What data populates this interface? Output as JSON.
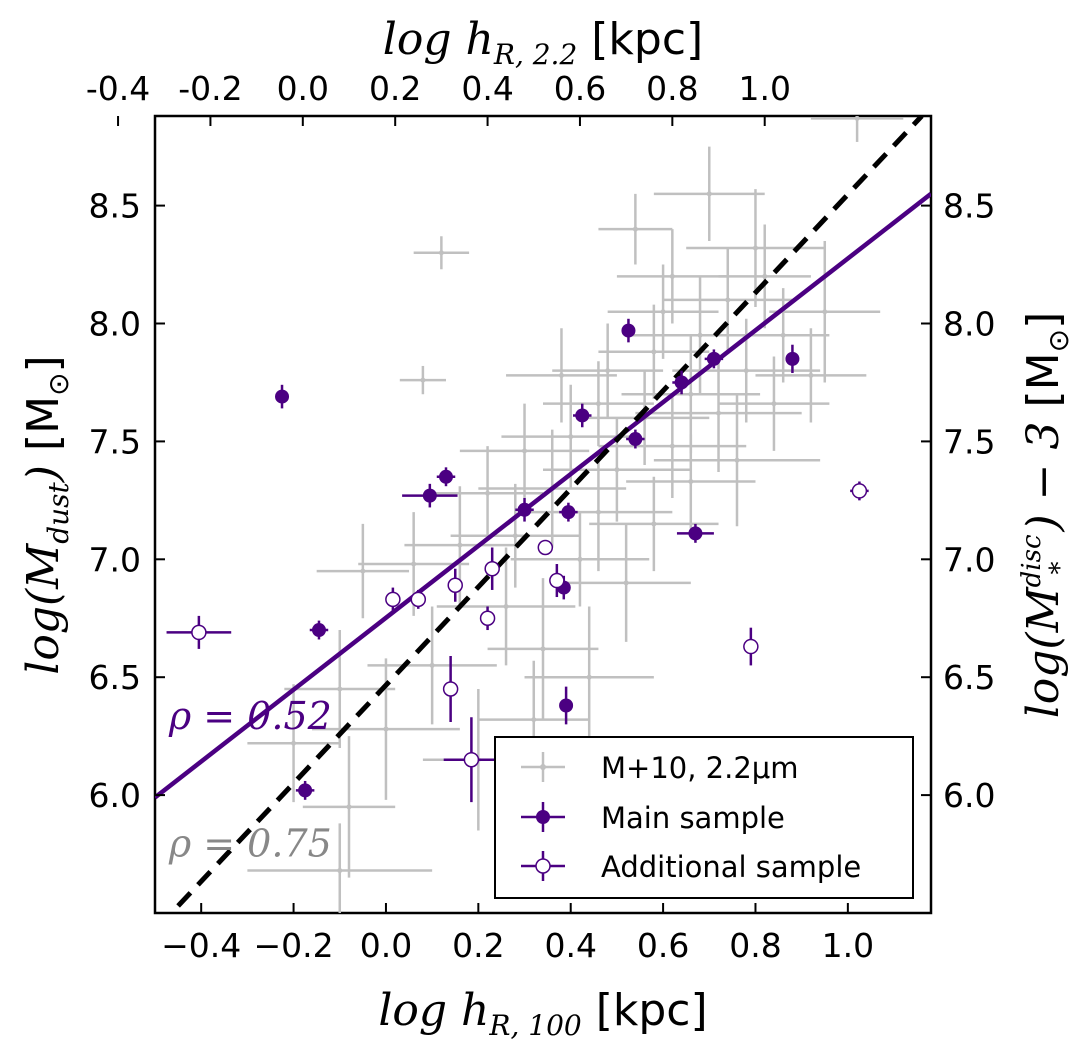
{
  "chart_data": {
    "type": "scatter",
    "title": "",
    "xlabel_bottom": {
      "math": "log h",
      "sub": "R, 100",
      "unit": " [kpc]"
    },
    "xlabel_top": {
      "math": "log h",
      "sub": "R, 2.2",
      "unit": " [kpc]"
    },
    "ylabel_left": {
      "math": "log(M",
      "sub": "dust",
      "close": ")",
      "unit": " [M",
      "sun": "⊙",
      "unit_close": "]"
    },
    "ylabel_right": {
      "math": "log(M",
      "sup": "disc",
      "sub": "*",
      "close": ") − 3",
      "unit": " [M",
      "sun": "⊙",
      "unit_close": "]"
    },
    "xlim": [
      -0.5,
      1.18
    ],
    "ylim": [
      5.5,
      8.88
    ],
    "top_xlim": [
      -0.32,
      1.36
    ],
    "x_ticks": [
      -0.4,
      -0.2,
      0.0,
      0.2,
      0.4,
      0.6,
      0.8,
      1.0
    ],
    "x_tick_labels": [
      "−0.4",
      "−0.2",
      "0.0",
      "0.2",
      "0.4",
      "0.6",
      "0.8",
      "1.0"
    ],
    "top_x_ticks": [
      -0.4,
      -0.2,
      0.0,
      0.2,
      0.4,
      0.6,
      0.8,
      1.0
    ],
    "top_x_tick_labels": [
      "-0.4",
      "-0.2",
      "0.0",
      "0.2",
      "0.4",
      "0.6",
      "0.8",
      "1.0"
    ],
    "y_ticks": [
      6.0,
      6.5,
      7.0,
      7.5,
      8.0,
      8.5
    ],
    "y_tick_labels": [
      "6.0",
      "6.5",
      "7.0",
      "7.5",
      "8.0",
      "8.5"
    ],
    "annotations": [
      {
        "text": "ρ = 0.52",
        "color": "#4b0082",
        "x": -0.47,
        "y": 6.28
      },
      {
        "text": "ρ = 0.75",
        "color": "#888888",
        "x": -0.47,
        "y": 5.74
      }
    ],
    "legend": {
      "position": "lower-right",
      "entries": [
        {
          "label": "M+10, 2.2μm",
          "style": "gray-cross"
        },
        {
          "label": "Main sample",
          "style": "filled"
        },
        {
          "label": "Additional sample",
          "style": "open"
        }
      ]
    },
    "colors": {
      "main": "#4b0082",
      "gray": "#c0c0c0",
      "dashed": "#000000",
      "gray_text": "#888888"
    },
    "lines": [
      {
        "name": "fit",
        "style": "solid",
        "color": "#4b0082",
        "x": [
          -0.5,
          1.18
        ],
        "y": [
          5.99,
          8.55
        ]
      },
      {
        "name": "one-to-one",
        "style": "dashed",
        "color": "#000000",
        "x": [
          -0.45,
          1.16
        ],
        "y": [
          5.53,
          8.88
        ]
      }
    ],
    "series": [
      {
        "name": "Main sample",
        "marker": "filled",
        "points": [
          {
            "x": -0.225,
            "y": 7.69,
            "xerr": 0.0,
            "yerr": 0.05
          },
          {
            "x": -0.175,
            "y": 6.02,
            "xerr": 0.02,
            "yerr": 0.04
          },
          {
            "x": -0.145,
            "y": 6.7,
            "xerr": 0.02,
            "yerr": 0.04
          },
          {
            "x": 0.095,
            "y": 7.27,
            "xerr": 0.06,
            "yerr": 0.05
          },
          {
            "x": 0.13,
            "y": 7.35,
            "xerr": 0.02,
            "yerr": 0.04
          },
          {
            "x": 0.3,
            "y": 7.21,
            "xerr": 0.02,
            "yerr": 0.05
          },
          {
            "x": 0.385,
            "y": 6.88,
            "xerr": 0.0,
            "yerr": 0.05
          },
          {
            "x": 0.39,
            "y": 6.38,
            "xerr": 0.0,
            "yerr": 0.08
          },
          {
            "x": 0.395,
            "y": 7.2,
            "xerr": 0.02,
            "yerr": 0.04
          },
          {
            "x": 0.425,
            "y": 7.61,
            "xerr": 0.02,
            "yerr": 0.05
          },
          {
            "x": 0.525,
            "y": 7.97,
            "xerr": 0.01,
            "yerr": 0.05
          },
          {
            "x": 0.54,
            "y": 7.51,
            "xerr": 0.02,
            "yerr": 0.04
          },
          {
            "x": 0.64,
            "y": 7.75,
            "xerr": 0.02,
            "yerr": 0.05
          },
          {
            "x": 0.67,
            "y": 7.11,
            "xerr": 0.04,
            "yerr": 0.04
          },
          {
            "x": 0.71,
            "y": 7.85,
            "xerr": 0.02,
            "yerr": 0.04
          },
          {
            "x": 0.88,
            "y": 7.85,
            "xerr": 0.0,
            "yerr": 0.06
          }
        ]
      },
      {
        "name": "Additional sample",
        "marker": "open",
        "points": [
          {
            "x": -0.405,
            "y": 6.69,
            "xerr": 0.07,
            "yerr": 0.07
          },
          {
            "x": 0.015,
            "y": 6.83,
            "xerr": 0.0,
            "yerr": 0.05
          },
          {
            "x": 0.07,
            "y": 6.83,
            "xerr": 0.01,
            "yerr": 0.04
          },
          {
            "x": 0.14,
            "y": 6.45,
            "xerr": 0.0,
            "yerr": 0.14
          },
          {
            "x": 0.15,
            "y": 6.89,
            "xerr": 0.01,
            "yerr": 0.07
          },
          {
            "x": 0.185,
            "y": 6.15,
            "xerr": 0.06,
            "yerr": 0.18
          },
          {
            "x": 0.22,
            "y": 6.75,
            "xerr": 0.0,
            "yerr": 0.05
          },
          {
            "x": 0.23,
            "y": 6.96,
            "xerr": 0.01,
            "yerr": 0.09
          },
          {
            "x": 0.345,
            "y": 7.05,
            "xerr": 0.01,
            "yerr": 0.03
          },
          {
            "x": 0.37,
            "y": 6.91,
            "xerr": 0.0,
            "yerr": 0.07
          },
          {
            "x": 0.79,
            "y": 6.63,
            "xerr": 0.0,
            "yerr": 0.08
          },
          {
            "x": 1.025,
            "y": 7.29,
            "xerr": 0.02,
            "yerr": 0.04
          }
        ]
      },
      {
        "name": "M+10, 2.2μm",
        "marker": "gray-cross",
        "points": [
          {
            "x": 0.12,
            "y": 8.3,
            "xerr": 0.06,
            "yerr": 0.07
          },
          {
            "x": 0.08,
            "y": 7.76,
            "xerr": 0.05,
            "yerr": 0.06
          },
          {
            "x": 0.54,
            "y": 8.4,
            "xerr": 0.08,
            "yerr": 0.15
          },
          {
            "x": 1.02,
            "y": 8.87,
            "xerr": 0.1,
            "yerr": 0.1
          },
          {
            "x": 0.7,
            "y": 8.55,
            "xerr": 0.12,
            "yerr": 0.2
          },
          {
            "x": 0.8,
            "y": 8.32,
            "xerr": 0.15,
            "yerr": 0.25
          },
          {
            "x": 0.62,
            "y": 8.2,
            "xerr": 0.12,
            "yerr": 0.2
          },
          {
            "x": 0.74,
            "y": 8.1,
            "xerr": 0.14,
            "yerr": 0.22
          },
          {
            "x": 0.95,
            "y": 8.05,
            "xerr": 0.12,
            "yerr": 0.3
          },
          {
            "x": 0.86,
            "y": 7.95,
            "xerr": 0.1,
            "yerr": 0.2
          },
          {
            "x": 0.68,
            "y": 7.95,
            "xerr": 0.15,
            "yerr": 0.25
          },
          {
            "x": 0.58,
            "y": 7.88,
            "xerr": 0.12,
            "yerr": 0.2
          },
          {
            "x": 0.78,
            "y": 7.8,
            "xerr": 0.16,
            "yerr": 0.22
          },
          {
            "x": 0.66,
            "y": 7.7,
            "xerr": 0.15,
            "yerr": 0.25
          },
          {
            "x": 0.48,
            "y": 7.8,
            "xerr": 0.12,
            "yerr": 0.2
          },
          {
            "x": 0.72,
            "y": 7.62,
            "xerr": 0.18,
            "yerr": 0.25
          },
          {
            "x": 0.84,
            "y": 7.66,
            "xerr": 0.12,
            "yerr": 0.2
          },
          {
            "x": 0.56,
            "y": 7.6,
            "xerr": 0.14,
            "yerr": 0.2
          },
          {
            "x": 0.4,
            "y": 7.52,
            "xerr": 0.15,
            "yerr": 0.22
          },
          {
            "x": 0.62,
            "y": 7.48,
            "xerr": 0.16,
            "yerr": 0.22
          },
          {
            "x": 0.76,
            "y": 7.42,
            "xerr": 0.18,
            "yerr": 0.28
          },
          {
            "x": 0.3,
            "y": 7.46,
            "xerr": 0.14,
            "yerr": 0.2
          },
          {
            "x": 0.5,
            "y": 7.38,
            "xerr": 0.16,
            "yerr": 0.22
          },
          {
            "x": 0.66,
            "y": 7.33,
            "xerr": 0.14,
            "yerr": 0.2
          },
          {
            "x": 0.36,
            "y": 7.3,
            "xerr": 0.16,
            "yerr": 0.25
          },
          {
            "x": 0.22,
            "y": 7.28,
            "xerr": 0.12,
            "yerr": 0.2
          },
          {
            "x": 0.46,
            "y": 7.2,
            "xerr": 0.16,
            "yerr": 0.25
          },
          {
            "x": 0.58,
            "y": 7.15,
            "xerr": 0.14,
            "yerr": 0.2
          },
          {
            "x": 0.28,
            "y": 7.1,
            "xerr": 0.14,
            "yerr": 0.22
          },
          {
            "x": 0.16,
            "y": 7.06,
            "xerr": 0.12,
            "yerr": 0.25
          },
          {
            "x": 0.42,
            "y": 7.0,
            "xerr": 0.15,
            "yerr": 0.2
          },
          {
            "x": 0.06,
            "y": 6.98,
            "xerr": 0.12,
            "yerr": 0.22
          },
          {
            "x": -0.05,
            "y": 6.95,
            "xerr": 0.1,
            "yerr": 0.2
          },
          {
            "x": 0.52,
            "y": 6.9,
            "xerr": 0.14,
            "yerr": 0.25
          },
          {
            "x": 0.26,
            "y": 6.8,
            "xerr": 0.15,
            "yerr": 0.25
          },
          {
            "x": 0.34,
            "y": 6.62,
            "xerr": 0.12,
            "yerr": 0.3
          },
          {
            "x": 0.44,
            "y": 6.5,
            "xerr": 0.14,
            "yerr": 0.3
          },
          {
            "x": 0.1,
            "y": 6.55,
            "xerr": 0.14,
            "yerr": 0.25
          },
          {
            "x": -0.1,
            "y": 6.45,
            "xerr": 0.12,
            "yerr": 0.25
          },
          {
            "x": 0.0,
            "y": 6.28,
            "xerr": 0.16,
            "yerr": 0.3
          },
          {
            "x": -0.2,
            "y": 6.22,
            "xerr": 0.1,
            "yerr": 0.25
          },
          {
            "x": 0.2,
            "y": 6.15,
            "xerr": 0.12,
            "yerr": 0.3
          },
          {
            "x": -0.08,
            "y": 5.95,
            "xerr": 0.1,
            "yerr": 0.3
          },
          {
            "x": -0.1,
            "y": 5.68,
            "xerr": 0.2,
            "yerr": 0.2
          },
          {
            "x": 0.32,
            "y": 6.32,
            "xerr": 0.12,
            "yerr": 0.25
          },
          {
            "x": 0.92,
            "y": 7.78,
            "xerr": 0.12,
            "yerr": 0.2
          },
          {
            "x": 0.6,
            "y": 8.05,
            "xerr": 0.12,
            "yerr": 0.2
          },
          {
            "x": 0.46,
            "y": 7.66,
            "xerr": 0.12,
            "yerr": 0.18
          },
          {
            "x": 0.82,
            "y": 8.2,
            "xerr": 0.1,
            "yerr": 0.22
          },
          {
            "x": 0.38,
            "y": 7.78,
            "xerr": 0.12,
            "yerr": 0.2
          }
        ]
      }
    ]
  }
}
